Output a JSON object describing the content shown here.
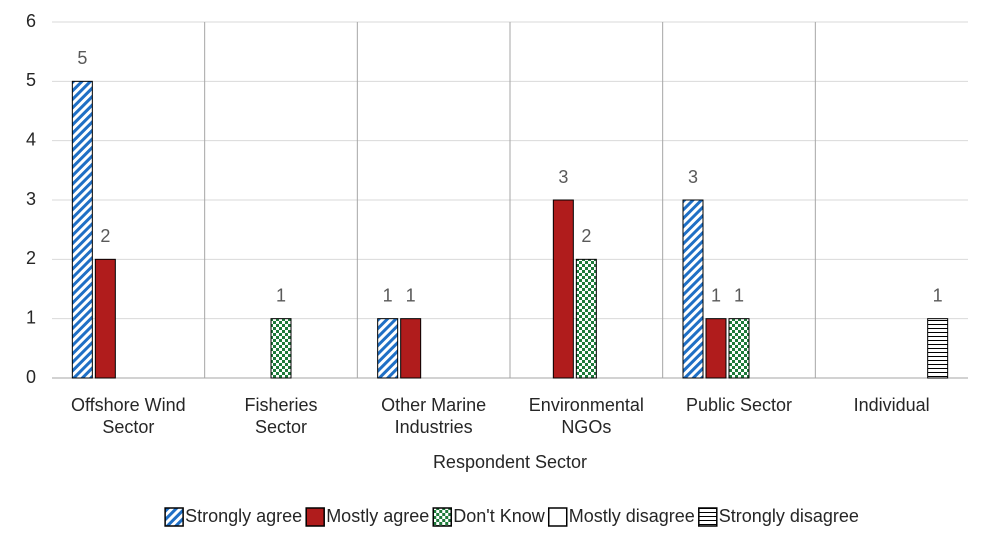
{
  "chart_data": {
    "type": "bar",
    "x_label": "Respondent Sector",
    "categories": [
      "Offshore Wind\nSector",
      "Fisheries\nSector",
      "Other Marine\nIndustries",
      "Environmental\nNGOs",
      "Public Sector",
      "Individual"
    ],
    "series": [
      {
        "name": "Strongly agree",
        "color": "#1f6fc5",
        "pattern": "diagonal",
        "values": [
          5,
          0,
          1,
          0,
          3,
          0
        ]
      },
      {
        "name": "Mostly agree",
        "color": "#b01c1c",
        "pattern": "solid",
        "values": [
          2,
          0,
          1,
          3,
          1,
          0
        ]
      },
      {
        "name": "Don't Know",
        "color": "#1e7b3a",
        "pattern": "checker",
        "values": [
          0,
          1,
          0,
          2,
          1,
          0
        ]
      },
      {
        "name": "Mostly disagree",
        "color": "#000000",
        "pattern": "none",
        "values": [
          0,
          0,
          0,
          0,
          0,
          0
        ]
      },
      {
        "name": "Strongly disagree",
        "color": "#000000",
        "pattern": "horizontal",
        "values": [
          0,
          0,
          0,
          0,
          0,
          1
        ]
      }
    ],
    "ylim": [
      0,
      6
    ],
    "yticks": [
      0,
      1,
      2,
      3,
      4,
      5,
      6
    ],
    "grid": true,
    "legend": "bottom"
  }
}
